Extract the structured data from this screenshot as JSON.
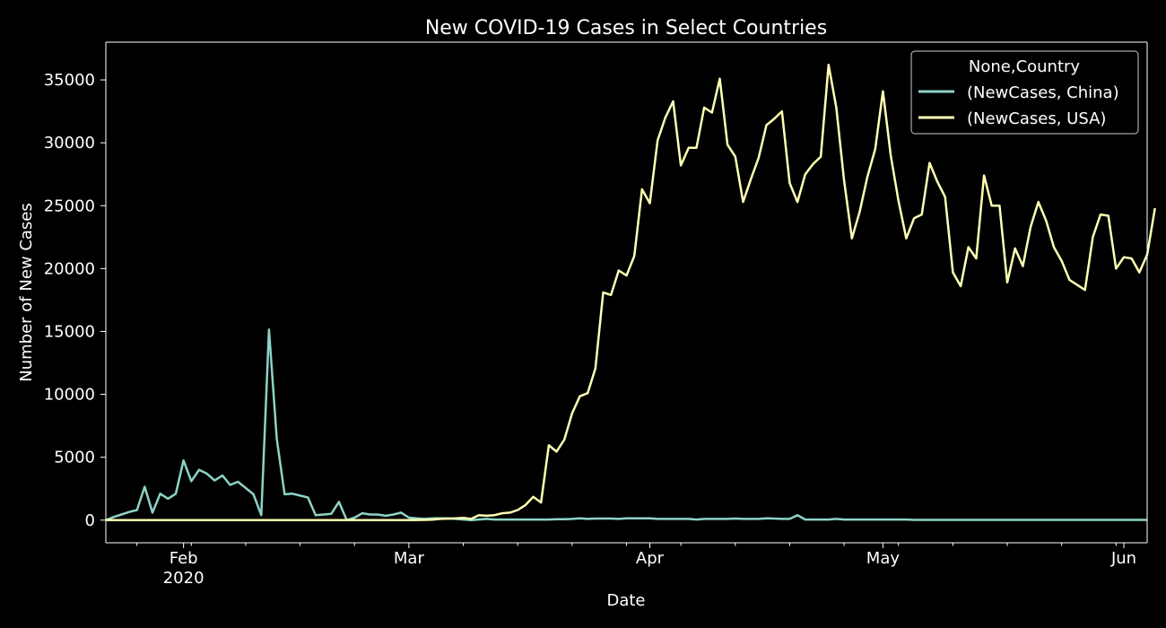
{
  "chart_data": {
    "type": "line",
    "title": "New COVID-19 Cases in Select Countries",
    "xlabel": "Date",
    "ylabel": "Number of New Cases",
    "x_start": "2020-01-22",
    "x_range": [
      "2020-01-22",
      "2020-06-04"
    ],
    "ylim": [
      -1800,
      38000
    ],
    "y_ticks": [
      0,
      5000,
      10000,
      15000,
      20000,
      25000,
      30000,
      35000
    ],
    "x_ticks": [
      {
        "date": "2020-02-01",
        "label": "Feb",
        "sub": "2020"
      },
      {
        "date": "2020-03-01",
        "label": "Mar",
        "sub": ""
      },
      {
        "date": "2020-04-01",
        "label": "Apr",
        "sub": ""
      },
      {
        "date": "2020-05-01",
        "label": "May",
        "sub": ""
      },
      {
        "date": "2020-06-01",
        "label": "Jun",
        "sub": ""
      }
    ],
    "grid": false,
    "legend": {
      "title": "None,Country",
      "position": "top-right"
    },
    "series": [
      {
        "name": "(NewCases, China)",
        "color": "#8dd3c7",
        "values": [
          0,
          250,
          450,
          650,
          800,
          2650,
          600,
          2100,
          1700,
          2100,
          4750,
          3100,
          4000,
          3700,
          3150,
          3550,
          2800,
          3050,
          2550,
          2050,
          400,
          15150,
          6450,
          2050,
          2100,
          1950,
          1800,
          400,
          450,
          500,
          1450,
          0,
          200,
          550,
          450,
          450,
          350,
          450,
          600,
          200,
          150,
          100,
          150,
          150,
          150,
          100,
          50,
          0,
          50,
          100,
          50,
          50,
          50,
          50,
          50,
          50,
          50,
          50,
          75,
          75,
          100,
          150,
          100,
          125,
          125,
          125,
          100,
          150,
          150,
          150,
          150,
          100,
          100,
          100,
          100,
          100,
          50,
          100,
          100,
          100,
          100,
          125,
          100,
          100,
          100,
          150,
          125,
          100,
          100,
          400,
          50,
          50,
          50,
          50,
          100,
          50,
          50,
          50,
          50,
          50,
          50,
          50,
          50,
          50,
          20,
          20,
          20,
          20,
          20,
          20,
          20,
          20,
          20,
          20,
          20,
          20,
          20,
          20,
          20,
          20,
          20,
          20,
          20,
          20,
          20,
          20,
          20,
          20,
          20,
          20,
          20,
          20,
          20,
          20,
          20
        ]
      },
      {
        "name": "(NewCases, USA)",
        "color": "#ffffb3",
        "values": [
          0,
          0,
          0,
          0,
          0,
          0,
          0,
          0,
          0,
          0,
          0,
          0,
          0,
          0,
          0,
          0,
          0,
          0,
          0,
          0,
          0,
          0,
          0,
          0,
          0,
          0,
          0,
          0,
          0,
          0,
          0,
          0,
          0,
          0,
          0,
          0,
          0,
          0,
          0,
          5,
          10,
          20,
          40,
          100,
          120,
          150,
          180,
          100,
          400,
          350,
          400,
          550,
          600,
          800,
          1200,
          1850,
          1400,
          5950,
          5450,
          6400,
          8500,
          9850,
          10100,
          12050,
          18100,
          17900,
          19850,
          19450,
          21000,
          26300,
          25200,
          30200,
          32000,
          33300,
          28200,
          29600,
          29600,
          32800,
          32400,
          35100,
          29850,
          28900,
          25300,
          27100,
          28800,
          31400,
          31900,
          32500,
          26800,
          25300,
          27500,
          28300,
          28900,
          36200,
          32800,
          27000,
          22400,
          24500,
          27300,
          29500,
          34100,
          29000,
          25400,
          22400,
          24000,
          24300,
          28400,
          26900,
          25700,
          19700,
          18600,
          21700,
          20800,
          27400,
          25000,
          25000,
          18900,
          21600,
          20200,
          23300,
          25300,
          23800,
          21700,
          20600,
          19100,
          18700,
          18300,
          22500,
          24300,
          24200,
          20000,
          20900,
          20800,
          19700,
          21100,
          24800
        ]
      }
    ]
  }
}
